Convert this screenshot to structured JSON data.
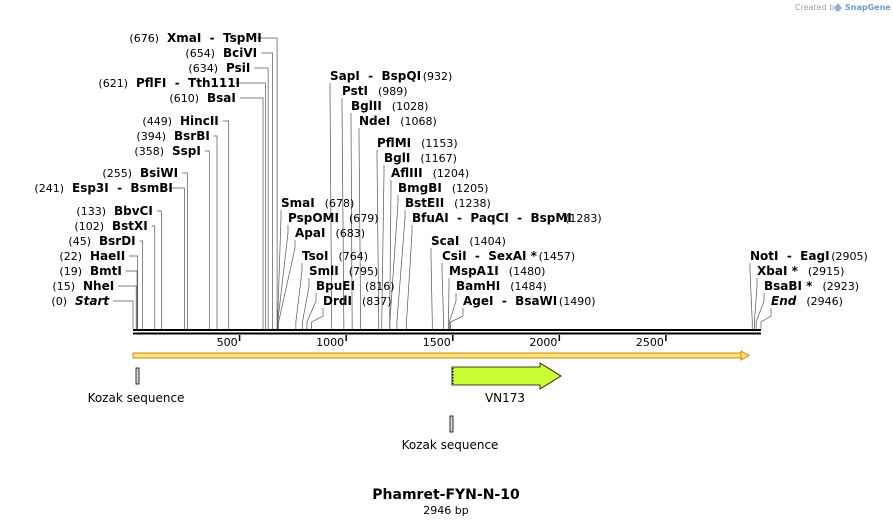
{
  "credit": {
    "created_by": "Created by",
    "brand": "SnapGene"
  },
  "map": {
    "name": "Phamret-FYN-N-10",
    "length_label": "2946 bp",
    "length": 2946,
    "ticks": [
      500,
      1000,
      1500,
      2000,
      2500
    ]
  },
  "sites": [
    {
      "pos": 0,
      "pos_label": "(0)",
      "label": "Start",
      "italic": true
    },
    {
      "pos": 15,
      "pos_label": "(15)",
      "label": "NheI"
    },
    {
      "pos": 19,
      "pos_label": "(19)",
      "label": "BmtI"
    },
    {
      "pos": 22,
      "pos_label": "(22)",
      "label": "HaeII"
    },
    {
      "pos": 45,
      "pos_label": "(45)",
      "label": "BsrDI"
    },
    {
      "pos": 102,
      "pos_label": "(102)",
      "label": "BstXI"
    },
    {
      "pos": 133,
      "pos_label": "(133)",
      "label": "BbvCI"
    },
    {
      "pos": 241,
      "pos_label": "(241)",
      "label": "Esp3I  -  BsmBI"
    },
    {
      "pos": 255,
      "pos_label": "(255)",
      "label": "BsiWI"
    },
    {
      "pos": 358,
      "pos_label": "(358)",
      "label": "SspI"
    },
    {
      "pos": 394,
      "pos_label": "(394)",
      "label": "BsrBI"
    },
    {
      "pos": 449,
      "pos_label": "(449)",
      "label": "HincII"
    },
    {
      "pos": 610,
      "pos_label": "(610)",
      "label": "BsaI"
    },
    {
      "pos": 621,
      "pos_label": "(621)",
      "label": "PflFI  -  Tth111I"
    },
    {
      "pos": 634,
      "pos_label": "(634)",
      "label": "PsiI"
    },
    {
      "pos": 654,
      "pos_label": "(654)",
      "label": "BciVI"
    },
    {
      "pos": 676,
      "pos_label": "(676)",
      "label": "XmaI  -  TspMI"
    },
    {
      "pos": 678,
      "pos_label": "(678)",
      "label": "SmaI"
    },
    {
      "pos": 679,
      "pos_label": "(679)",
      "label": "PspOMI"
    },
    {
      "pos": 683,
      "pos_label": "(683)",
      "label": "ApaI"
    },
    {
      "pos": 764,
      "pos_label": "(764)",
      "label": "TsoI"
    },
    {
      "pos": 795,
      "pos_label": "(795)",
      "label": "SmlI"
    },
    {
      "pos": 816,
      "pos_label": "(816)",
      "label": "BpuEI"
    },
    {
      "pos": 837,
      "pos_label": "(837)",
      "label": "DrdI"
    },
    {
      "pos": 932,
      "pos_label": "(932)",
      "label": "SapI  -  BspQI"
    },
    {
      "pos": 989,
      "pos_label": "(989)",
      "label": "PstI"
    },
    {
      "pos": 1028,
      "pos_label": "(1028)",
      "label": "BglII"
    },
    {
      "pos": 1068,
      "pos_label": "(1068)",
      "label": "NdeI"
    },
    {
      "pos": 1153,
      "pos_label": "(1153)",
      "label": "PflMI"
    },
    {
      "pos": 1167,
      "pos_label": "(1167)",
      "label": "BglI"
    },
    {
      "pos": 1204,
      "pos_label": "(1204)",
      "label": "AflIII"
    },
    {
      "pos": 1205,
      "pos_label": "(1205)",
      "label": "BmgBI"
    },
    {
      "pos": 1238,
      "pos_label": "(1238)",
      "label": "BstEII"
    },
    {
      "pos": 1283,
      "pos_label": "(1283)",
      "label": "BfuAI  -  PaqCI  -  BspMI"
    },
    {
      "pos": 1404,
      "pos_label": "(1404)",
      "label": "ScaI"
    },
    {
      "pos": 1457,
      "pos_label": "(1457)",
      "label": "CsiI  -  SexAI *"
    },
    {
      "pos": 1480,
      "pos_label": "(1480)",
      "label": "MspA1I"
    },
    {
      "pos": 1484,
      "pos_label": "(1484)",
      "label": "BamHI"
    },
    {
      "pos": 1490,
      "pos_label": "(1490)",
      "label": "AgeI  -  BsaWI"
    },
    {
      "pos": 2905,
      "pos_label": "(2905)",
      "label": "NotI  -  EagI"
    },
    {
      "pos": 2915,
      "pos_label": "(2915)",
      "label": "XbaI *"
    },
    {
      "pos": 2923,
      "pos_label": "(2923)",
      "label": "BsaBI *"
    },
    {
      "pos": 2946,
      "pos_label": "(2946)",
      "label": "End",
      "italic": true
    }
  ],
  "features": [
    {
      "name": "Kozak sequence",
      "start": 15,
      "end": 24,
      "type": "misc",
      "track": 1
    },
    {
      "name": "VN173",
      "start": 1496,
      "end": 2014,
      "type": "cds",
      "track": 1,
      "color": "#ccff33"
    },
    {
      "name": "Kozak sequence",
      "start": 1484,
      "end": 1496,
      "type": "misc",
      "track": 2
    }
  ],
  "orf": {
    "start": 0,
    "end": 2946,
    "color": "#ffe080",
    "outline": "#c88c00"
  },
  "colors": {
    "backbone": "#000000",
    "cds": "#ccff33",
    "accent": "#4a86c5"
  }
}
